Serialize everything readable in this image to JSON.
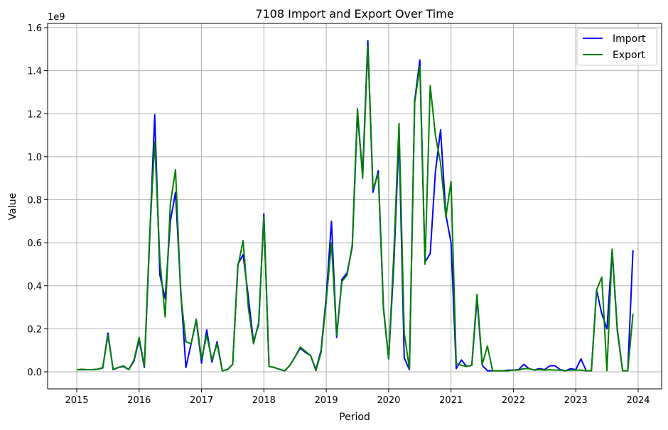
{
  "chart_data": {
    "type": "line",
    "title": "7108 Import and Export Over Time",
    "xlabel": "Period",
    "ylabel": "Value",
    "y_offset_text": "1e9",
    "xlim": [
      "2015",
      "2024"
    ],
    "ylim": [
      0,
      1.6
    ],
    "x_ticks": [
      "2015",
      "2016",
      "2017",
      "2018",
      "2019",
      "2020",
      "2021",
      "2022",
      "2023",
      "2024"
    ],
    "y_ticks": [
      "0.0",
      "0.2",
      "0.4",
      "0.6",
      "0.8",
      "1.0",
      "1.2",
      "1.4",
      "1.6"
    ],
    "grid": true,
    "legend_position": "top-right",
    "series": [
      {
        "name": "Import",
        "color": "#0000ff",
        "points": [
          [
            "2015-01",
            0.01
          ],
          [
            "2015-02",
            0.01
          ],
          [
            "2015-03",
            0.01
          ],
          [
            "2015-04",
            0.01
          ],
          [
            "2015-05",
            0.012
          ],
          [
            "2015-06",
            0.018
          ],
          [
            "2015-07",
            0.18
          ],
          [
            "2015-08",
            0.01
          ],
          [
            "2015-09",
            0.02
          ],
          [
            "2015-10",
            0.025
          ],
          [
            "2015-11",
            0.01
          ],
          [
            "2015-12",
            0.05
          ],
          [
            "2016-01",
            0.15
          ],
          [
            "2016-02",
            0.02
          ],
          [
            "2016-03",
            0.6
          ],
          [
            "2016-04",
            1.195
          ],
          [
            "2016-05",
            0.45
          ],
          [
            "2016-06",
            0.34
          ],
          [
            "2016-07",
            0.7
          ],
          [
            "2016-08",
            0.835
          ],
          [
            "2016-09",
            0.38
          ],
          [
            "2016-10",
            0.02
          ],
          [
            "2016-11",
            0.13
          ],
          [
            "2016-12",
            0.24
          ],
          [
            "2017-01",
            0.04
          ],
          [
            "2017-02",
            0.195
          ],
          [
            "2017-03",
            0.045
          ],
          [
            "2017-04",
            0.14
          ],
          [
            "2017-05",
            0.005
          ],
          [
            "2017-06",
            0.01
          ],
          [
            "2017-07",
            0.035
          ],
          [
            "2017-08",
            0.5
          ],
          [
            "2017-09",
            0.545
          ],
          [
            "2017-10",
            0.35
          ],
          [
            "2017-11",
            0.14
          ],
          [
            "2017-12",
            0.22
          ],
          [
            "2018-01",
            0.735
          ],
          [
            "2018-02",
            0.025
          ],
          [
            "2018-03",
            0.02
          ],
          [
            "2018-04",
            0.012
          ],
          [
            "2018-05",
            0.005
          ],
          [
            "2018-06",
            0.03
          ],
          [
            "2018-07",
            0.07
          ],
          [
            "2018-08",
            0.11
          ],
          [
            "2018-09",
            0.09
          ],
          [
            "2018-10",
            0.075
          ],
          [
            "2018-11",
            0.01
          ],
          [
            "2018-12",
            0.1
          ],
          [
            "2019-01",
            0.35
          ],
          [
            "2019-02",
            0.7
          ],
          [
            "2019-03",
            0.16
          ],
          [
            "2019-04",
            0.43
          ],
          [
            "2019-05",
            0.46
          ],
          [
            "2019-06",
            0.58
          ],
          [
            "2019-07",
            1.2
          ],
          [
            "2019-08",
            0.92
          ],
          [
            "2019-09",
            1.54
          ],
          [
            "2019-10",
            0.835
          ],
          [
            "2019-11",
            0.935
          ],
          [
            "2019-12",
            0.3
          ],
          [
            "2020-01",
            0.06
          ],
          [
            "2020-02",
            0.5
          ],
          [
            "2020-03",
            1.1
          ],
          [
            "2020-04",
            0.065
          ],
          [
            "2020-05",
            0.01
          ],
          [
            "2020-06",
            1.26
          ],
          [
            "2020-07",
            1.45
          ],
          [
            "2020-08",
            0.51
          ],
          [
            "2020-09",
            0.55
          ],
          [
            "2020-10",
            0.93
          ],
          [
            "2020-11",
            1.125
          ],
          [
            "2020-12",
            0.73
          ],
          [
            "2021-01",
            0.6
          ],
          [
            "2021-02",
            0.015
          ],
          [
            "2021-03",
            0.055
          ],
          [
            "2021-04",
            0.025
          ],
          [
            "2021-05",
            0.03
          ],
          [
            "2021-06",
            0.34
          ],
          [
            "2021-07",
            0.03
          ],
          [
            "2021-08",
            0.005
          ],
          [
            "2021-09",
            0.005
          ],
          [
            "2021-10",
            0.005
          ],
          [
            "2021-11",
            0.005
          ],
          [
            "2021-12",
            0.008
          ],
          [
            "2022-01",
            0.008
          ],
          [
            "2022-02",
            0.01
          ],
          [
            "2022-03",
            0.035
          ],
          [
            "2022-04",
            0.015
          ],
          [
            "2022-05",
            0.008
          ],
          [
            "2022-06",
            0.015
          ],
          [
            "2022-07",
            0.01
          ],
          [
            "2022-08",
            0.028
          ],
          [
            "2022-09",
            0.028
          ],
          [
            "2022-10",
            0.01
          ],
          [
            "2022-11",
            0.005
          ],
          [
            "2022-12",
            0.015
          ],
          [
            "2023-01",
            0.01
          ],
          [
            "2023-02",
            0.06
          ],
          [
            "2023-03",
            0.005
          ],
          [
            "2023-04",
            0.005
          ],
          [
            "2023-05",
            0.38
          ],
          [
            "2023-06",
            0.27
          ],
          [
            "2023-07",
            0.2
          ],
          [
            "2023-08",
            0.565
          ],
          [
            "2023-09",
            0.19
          ],
          [
            "2023-10",
            0.005
          ],
          [
            "2023-11",
            0.005
          ],
          [
            "2023-12",
            0.565
          ]
        ]
      },
      {
        "name": "Export",
        "color": "#008000",
        "points": [
          [
            "2015-01",
            0.01
          ],
          [
            "2015-02",
            0.012
          ],
          [
            "2015-03",
            0.01
          ],
          [
            "2015-04",
            0.01
          ],
          [
            "2015-05",
            0.012
          ],
          [
            "2015-06",
            0.02
          ],
          [
            "2015-07",
            0.17
          ],
          [
            "2015-08",
            0.012
          ],
          [
            "2015-09",
            0.02
          ],
          [
            "2015-10",
            0.028
          ],
          [
            "2015-11",
            0.01
          ],
          [
            "2015-12",
            0.055
          ],
          [
            "2016-01",
            0.16
          ],
          [
            "2016-02",
            0.025
          ],
          [
            "2016-03",
            0.62
          ],
          [
            "2016-04",
            1.07
          ],
          [
            "2016-05",
            0.52
          ],
          [
            "2016-06",
            0.255
          ],
          [
            "2016-07",
            0.78
          ],
          [
            "2016-08",
            0.94
          ],
          [
            "2016-09",
            0.36
          ],
          [
            "2016-10",
            0.14
          ],
          [
            "2016-11",
            0.13
          ],
          [
            "2016-12",
            0.245
          ],
          [
            "2017-01",
            0.06
          ],
          [
            "2017-02",
            0.17
          ],
          [
            "2017-03",
            0.055
          ],
          [
            "2017-04",
            0.13
          ],
          [
            "2017-05",
            0.005
          ],
          [
            "2017-06",
            0.01
          ],
          [
            "2017-07",
            0.035
          ],
          [
            "2017-08",
            0.49
          ],
          [
            "2017-09",
            0.61
          ],
          [
            "2017-10",
            0.3
          ],
          [
            "2017-11",
            0.13
          ],
          [
            "2017-12",
            0.23
          ],
          [
            "2018-01",
            0.72
          ],
          [
            "2018-02",
            0.025
          ],
          [
            "2018-03",
            0.02
          ],
          [
            "2018-04",
            0.012
          ],
          [
            "2018-05",
            0.005
          ],
          [
            "2018-06",
            0.03
          ],
          [
            "2018-07",
            0.07
          ],
          [
            "2018-08",
            0.115
          ],
          [
            "2018-09",
            0.095
          ],
          [
            "2018-10",
            0.075
          ],
          [
            "2018-11",
            0.005
          ],
          [
            "2018-12",
            0.09
          ],
          [
            "2019-01",
            0.33
          ],
          [
            "2019-02",
            0.6
          ],
          [
            "2019-03",
            0.17
          ],
          [
            "2019-04",
            0.42
          ],
          [
            "2019-05",
            0.45
          ],
          [
            "2019-06",
            0.59
          ],
          [
            "2019-07",
            1.225
          ],
          [
            "2019-08",
            0.9
          ],
          [
            "2019-09",
            1.515
          ],
          [
            "2019-10",
            0.85
          ],
          [
            "2019-11",
            0.92
          ],
          [
            "2019-12",
            0.29
          ],
          [
            "2020-01",
            0.06
          ],
          [
            "2020-02",
            0.55
          ],
          [
            "2020-03",
            1.155
          ],
          [
            "2020-04",
            0.18
          ],
          [
            "2020-05",
            0.015
          ],
          [
            "2020-06",
            1.25
          ],
          [
            "2020-07",
            1.42
          ],
          [
            "2020-08",
            0.5
          ],
          [
            "2020-09",
            1.33
          ],
          [
            "2020-10",
            1.1
          ],
          [
            "2020-11",
            0.97
          ],
          [
            "2020-12",
            0.72
          ],
          [
            "2021-01",
            0.885
          ],
          [
            "2021-02",
            0.04
          ],
          [
            "2021-03",
            0.03
          ],
          [
            "2021-04",
            0.025
          ],
          [
            "2021-05",
            0.03
          ],
          [
            "2021-06",
            0.36
          ],
          [
            "2021-07",
            0.035
          ],
          [
            "2021-08",
            0.12
          ],
          [
            "2021-09",
            0.005
          ],
          [
            "2021-10",
            0.005
          ],
          [
            "2021-11",
            0.005
          ],
          [
            "2021-12",
            0.005
          ],
          [
            "2022-01",
            0.008
          ],
          [
            "2022-02",
            0.008
          ],
          [
            "2022-03",
            0.015
          ],
          [
            "2022-04",
            0.015
          ],
          [
            "2022-05",
            0.008
          ],
          [
            "2022-06",
            0.01
          ],
          [
            "2022-07",
            0.008
          ],
          [
            "2022-08",
            0.01
          ],
          [
            "2022-09",
            0.008
          ],
          [
            "2022-10",
            0.008
          ],
          [
            "2022-11",
            0.005
          ],
          [
            "2022-12",
            0.008
          ],
          [
            "2023-01",
            0.008
          ],
          [
            "2023-02",
            0.008
          ],
          [
            "2023-03",
            0.005
          ],
          [
            "2023-04",
            0.005
          ],
          [
            "2023-05",
            0.38
          ],
          [
            "2023-06",
            0.44
          ],
          [
            "2023-07",
            0.005
          ],
          [
            "2023-08",
            0.57
          ],
          [
            "2023-09",
            0.2
          ],
          [
            "2023-10",
            0.005
          ],
          [
            "2023-11",
            0.005
          ],
          [
            "2023-12",
            0.27
          ]
        ]
      }
    ]
  }
}
